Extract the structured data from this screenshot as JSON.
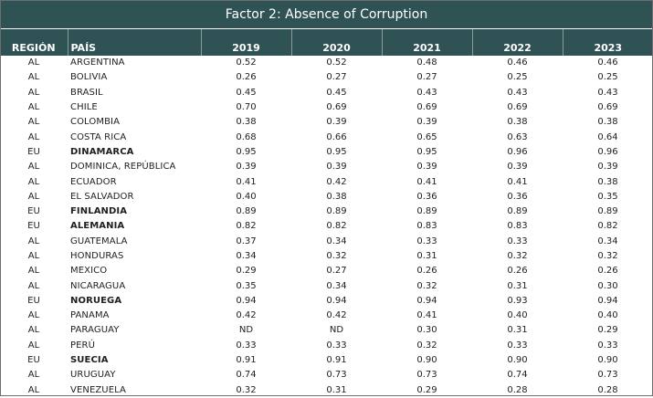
{
  "title": "Factor 2: Absence of Corruption",
  "headers": [
    "REGIÓN",
    "PAÍS",
    "2019",
    "2020",
    "2021",
    "2022",
    "2023"
  ],
  "rows": [
    {
      "region": "AL",
      "country": "ARGENTINA",
      "bold": false,
      "values": [
        "0.52",
        "0.52",
        "0.48",
        "0.46",
        "0.46"
      ]
    },
    {
      "region": "AL",
      "country": "BOLIVIA",
      "bold": false,
      "values": [
        "0.26",
        "0.27",
        "0.27",
        "0.25",
        "0.25"
      ]
    },
    {
      "region": "AL",
      "country": "BRASIL",
      "bold": false,
      "values": [
        "0.45",
        "0.45",
        "0.43",
        "0.43",
        "0.43"
      ]
    },
    {
      "region": "AL",
      "country": "CHILE",
      "bold": false,
      "values": [
        "0.70",
        "0.69",
        "0.69",
        "0.69",
        "0.69"
      ]
    },
    {
      "region": "AL",
      "country": "COLOMBIA",
      "bold": false,
      "values": [
        "0.38",
        "0.39",
        "0.39",
        "0.38",
        "0.38"
      ]
    },
    {
      "region": "AL",
      "country": "COSTA RICA",
      "bold": false,
      "values": [
        "0.68",
        "0.66",
        "0.65",
        "0.63",
        "0.64"
      ]
    },
    {
      "region": "EU",
      "country": "DINAMARCA",
      "bold": true,
      "values": [
        "0.95",
        "0.95",
        "0.95",
        "0.96",
        "0.96"
      ]
    },
    {
      "region": "AL",
      "country": "DOMINICA, REPÚBLICA",
      "bold": false,
      "values": [
        "0.39",
        "0.39",
        "0.39",
        "0.39",
        "0.39"
      ]
    },
    {
      "region": "AL",
      "country": "ECUADOR",
      "bold": false,
      "values": [
        "0.41",
        "0.42",
        "0.41",
        "0.41",
        "0.38"
      ]
    },
    {
      "region": "AL",
      "country": "EL SALVADOR",
      "bold": false,
      "values": [
        "0.40",
        "0.38",
        "0.36",
        "0.36",
        "0.35"
      ]
    },
    {
      "region": "EU",
      "country": "FINLANDIA",
      "bold": true,
      "values": [
        "0.89",
        "0.89",
        "0.89",
        "0.89",
        "0.89"
      ]
    },
    {
      "region": "EU",
      "country": "ALEMANIA",
      "bold": true,
      "values": [
        "0.82",
        "0.82",
        "0.83",
        "0.83",
        "0.82"
      ]
    },
    {
      "region": "AL",
      "country": "GUATEMALA",
      "bold": false,
      "values": [
        "0.37",
        "0.34",
        "0.33",
        "0.33",
        "0.34"
      ]
    },
    {
      "region": "AL",
      "country": "HONDURAS",
      "bold": false,
      "values": [
        "0.34",
        "0.32",
        "0.31",
        "0.32",
        "0.32"
      ]
    },
    {
      "region": "AL",
      "country": "MEXICO",
      "bold": false,
      "values": [
        "0.29",
        "0.27",
        "0.26",
        "0.26",
        "0.26"
      ]
    },
    {
      "region": "AL",
      "country": "NICARAGUA",
      "bold": false,
      "values": [
        "0.35",
        "0.34",
        "0.32",
        "0.31",
        "0.30"
      ]
    },
    {
      "region": "EU",
      "country": "NORUEGA",
      "bold": true,
      "values": [
        "0.94",
        "0.94",
        "0.94",
        "0.93",
        "0.94"
      ]
    },
    {
      "region": "AL",
      "country": "PANAMA",
      "bold": false,
      "values": [
        "0.42",
        "0.42",
        "0.41",
        "0.40",
        "0.40"
      ]
    },
    {
      "region": "AL",
      "country": "PARAGUAY",
      "bold": false,
      "values": [
        "ND",
        "ND",
        "0.30",
        "0.31",
        "0.29"
      ]
    },
    {
      "region": "AL",
      "country": "PERÚ",
      "bold": false,
      "values": [
        "0.33",
        "0.33",
        "0.32",
        "0.33",
        "0.33"
      ]
    },
    {
      "region": "EU",
      "country": "SUECIA",
      "bold": true,
      "values": [
        "0.91",
        "0.91",
        "0.90",
        "0.90",
        "0.90"
      ]
    },
    {
      "region": "AL",
      "country": "URUGUAY",
      "bold": false,
      "values": [
        "0.74",
        "0.73",
        "0.73",
        "0.74",
        "0.73"
      ]
    },
    {
      "region": "AL",
      "country": "VENEZUELA",
      "bold": false,
      "values": [
        "0.32",
        "0.31",
        "0.29",
        "0.28",
        "0.28"
      ]
    }
  ],
  "colors": {
    "header_bg": "#2f5355",
    "header_text": "#ffffff"
  }
}
